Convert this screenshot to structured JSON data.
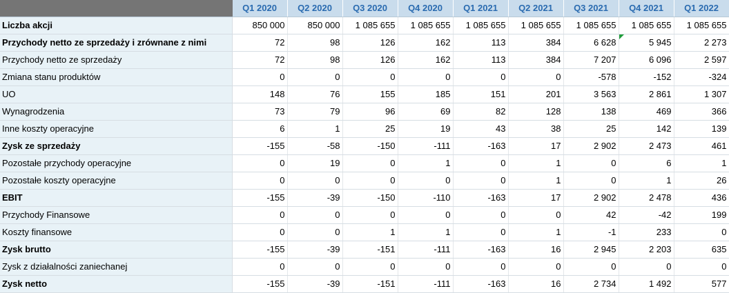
{
  "header": {
    "quarters": [
      "Q1 2020",
      "Q2 2020",
      "Q3 2020",
      "Q4 2020",
      "Q1 2021",
      "Q2 2021",
      "Q3 2021",
      "Q4 2021",
      "Q1 2022"
    ]
  },
  "rows": [
    {
      "label": "Liczba akcji",
      "bold": true,
      "values": [
        "850 000",
        "850 000",
        "1 085 655",
        "1 085 655",
        "1 085 655",
        "1 085 655",
        "1 085 655",
        "1 085 655",
        "1 085 655"
      ]
    },
    {
      "label": "Przychody netto ze sprzedaży i zrównane z nimi",
      "bold": true,
      "values": [
        "72",
        "98",
        "126",
        "162",
        "113",
        "384",
        "6 628",
        "5 945",
        "2 273"
      ]
    },
    {
      "label": "Przychody netto ze sprzedaży",
      "bold": false,
      "values": [
        "72",
        "98",
        "126",
        "162",
        "113",
        "384",
        "7 207",
        "6 096",
        "2 597"
      ]
    },
    {
      "label": "Zmiana stanu produktów",
      "bold": false,
      "values": [
        "0",
        "0",
        "0",
        "0",
        "0",
        "0",
        "-578",
        "-152",
        "-324"
      ]
    },
    {
      "label": "UO",
      "bold": false,
      "values": [
        "148",
        "76",
        "155",
        "185",
        "151",
        "201",
        "3 563",
        "2 861",
        "1 307"
      ]
    },
    {
      "label": "Wynagrodzenia",
      "bold": false,
      "values": [
        "73",
        "79",
        "96",
        "69",
        "82",
        "128",
        "138",
        "469",
        "366"
      ]
    },
    {
      "label": "Inne koszty operacyjne",
      "bold": false,
      "values": [
        "6",
        "1",
        "25",
        "19",
        "43",
        "38",
        "25",
        "142",
        "139"
      ]
    },
    {
      "label": "Zysk ze sprzedaży",
      "bold": true,
      "values": [
        "-155",
        "-58",
        "-150",
        "-111",
        "-163",
        "17",
        "2 902",
        "2 473",
        "461"
      ]
    },
    {
      "label": "Pozostałe przychody operacyjne",
      "bold": false,
      "values": [
        "0",
        "19",
        "0",
        "1",
        "0",
        "1",
        "0",
        "6",
        "1"
      ]
    },
    {
      "label": "Pozostałe koszty operacyjne",
      "bold": false,
      "values": [
        "0",
        "0",
        "0",
        "0",
        "0",
        "1",
        "0",
        "1",
        "26"
      ]
    },
    {
      "label": "EBIT",
      "bold": true,
      "values": [
        "-155",
        "-39",
        "-150",
        "-110",
        "-163",
        "17",
        "2 902",
        "2 478",
        "436"
      ]
    },
    {
      "label": "Przychody Finansowe",
      "bold": false,
      "values": [
        "0",
        "0",
        "0",
        "0",
        "0",
        "0",
        "42",
        "-42",
        "199"
      ]
    },
    {
      "label": "Koszty finansowe",
      "bold": false,
      "values": [
        "0",
        "0",
        "1",
        "1",
        "0",
        "1",
        "-1",
        "233",
        "0"
      ]
    },
    {
      "label": "Zysk brutto",
      "bold": true,
      "values": [
        "-155",
        "-39",
        "-151",
        "-111",
        "-163",
        "16",
        "2 945",
        "2 203",
        "635"
      ]
    },
    {
      "label": "Zysk z działalności zaniechanej",
      "bold": false,
      "values": [
        "0",
        "0",
        "0",
        "0",
        "0",
        "0",
        "0",
        "0",
        "0"
      ]
    },
    {
      "label": "Zysk netto",
      "bold": true,
      "values": [
        "-155",
        "-39",
        "-151",
        "-111",
        "-163",
        "16",
        "2 734",
        "1 492",
        "577"
      ]
    }
  ],
  "colors": {
    "header_bg": "#c9dcec",
    "header_text": "#2a6bb0",
    "corner_bg": "#757575",
    "label_bg": "#e8f2f7",
    "comment_marker": "#1f9d3a"
  },
  "comment_marker": {
    "row": 1,
    "col": 7
  }
}
